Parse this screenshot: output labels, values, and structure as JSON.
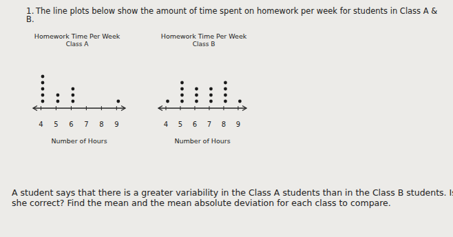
{
  "header": {
    "number": "1.",
    "lines": [
      "The line plots below show the amount of time spent on homework per week for students in Class A &",
      "B."
    ]
  },
  "question": {
    "lines": [
      "A student says that there is a greater variability in the Class A students than in the Class B students. Is",
      "she correct? Find the mean and the mean absolute deviation for each class to compare."
    ]
  },
  "chart_data": [
    {
      "type": "dot",
      "title": "Homework Time Per Week",
      "subtitle": "Class A",
      "x_label": "Number of Hours",
      "x": [
        4,
        5,
        6,
        7,
        8,
        9
      ],
      "values": [
        5,
        2,
        3,
        0,
        0,
        1
      ],
      "xlim": [
        3.5,
        9.6
      ],
      "xticks": [
        4,
        5,
        6,
        7,
        8,
        9
      ],
      "tick_labels": "x",
      "color": "#1a1a1a"
    },
    {
      "type": "dot",
      "title": "Homework Time Per Week",
      "subtitle": "Class B",
      "x_label": "Number of Hours",
      "x": [
        4,
        5,
        6,
        7,
        8,
        9
      ],
      "values": [
        1,
        4,
        3,
        3,
        4,
        1
      ],
      "xlim": [
        3.5,
        9.6
      ],
      "xticks": [
        4,
        5,
        6,
        7,
        8,
        9
      ],
      "tick_labels": "x",
      "color": "#1a1a1a"
    }
  ]
}
